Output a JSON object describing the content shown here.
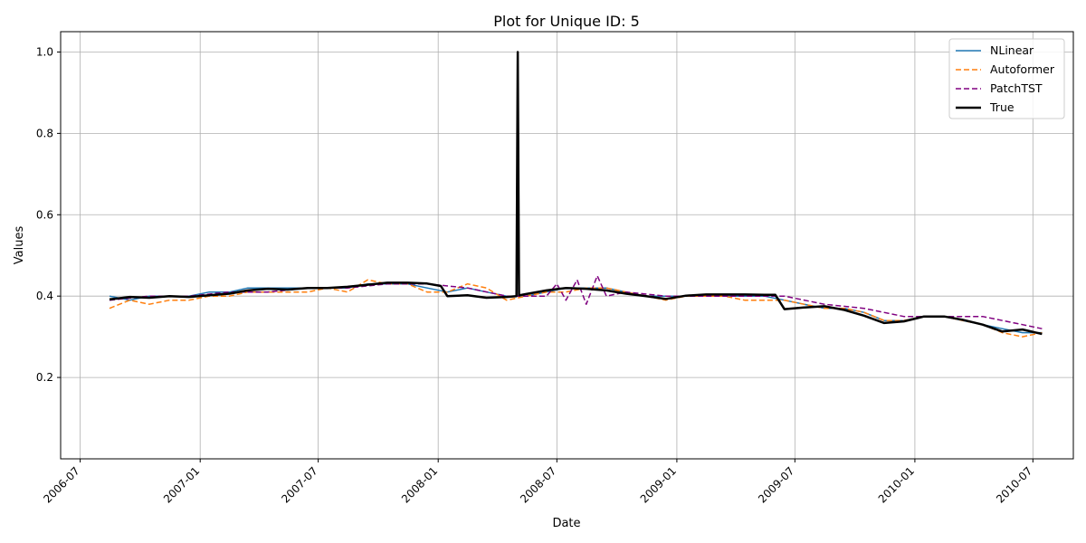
{
  "chart_data": {
    "type": "line",
    "title": "Plot for Unique ID: 5",
    "xlabel": "Date",
    "ylabel": "Values",
    "xlim": [
      "2006-06-01",
      "2010-09-01"
    ],
    "ylim": [
      0.0,
      1.05
    ],
    "x_ticks": [
      "2006-07",
      "2007-01",
      "2007-07",
      "2008-01",
      "2008-07",
      "2009-01",
      "2009-07",
      "2010-01",
      "2010-07"
    ],
    "y_ticks": [
      "0.2",
      "0.4",
      "0.6",
      "0.8",
      "1.0"
    ],
    "grid": true,
    "legend_position": "top-right",
    "series": [
      {
        "name": "NLinear",
        "color": "#1f77b4",
        "style": "solid",
        "x": [
          "2006-08-15",
          "2006-09-15",
          "2006-10-15",
          "2006-11-15",
          "2006-12-15",
          "2007-01-15",
          "2007-02-15",
          "2007-03-15",
          "2007-04-15",
          "2007-05-15",
          "2007-06-15",
          "2007-07-15",
          "2007-08-15",
          "2007-09-15",
          "2007-10-15",
          "2007-11-15",
          "2007-12-15",
          "2008-01-15",
          "2008-02-15",
          "2008-03-15",
          "2008-04-15",
          "2008-05-15",
          "2008-06-15",
          "2008-07-15",
          "2008-08-15",
          "2008-09-15",
          "2008-10-15",
          "2008-11-15",
          "2008-12-15",
          "2009-01-15",
          "2009-02-15",
          "2009-03-15",
          "2009-04-15",
          "2009-05-15",
          "2009-06-15",
          "2009-07-15",
          "2009-08-15",
          "2009-09-15",
          "2009-10-15",
          "2009-11-15",
          "2009-12-15",
          "2010-01-15",
          "2010-02-15",
          "2010-03-15",
          "2010-04-15",
          "2010-05-15",
          "2010-06-15",
          "2010-07-15"
        ],
        "values": [
          0.4,
          0.39,
          0.4,
          0.4,
          0.4,
          0.41,
          0.41,
          0.42,
          0.42,
          0.42,
          0.42,
          0.42,
          0.42,
          0.43,
          0.43,
          0.43,
          0.42,
          0.41,
          0.42,
          0.41,
          0.4,
          0.4,
          0.41,
          0.42,
          0.42,
          0.42,
          0.41,
          0.4,
          0.4,
          0.4,
          0.4,
          0.4,
          0.4,
          0.4,
          0.39,
          0.38,
          0.37,
          0.37,
          0.36,
          0.34,
          0.34,
          0.35,
          0.35,
          0.34,
          0.33,
          0.32,
          0.31,
          0.31
        ]
      },
      {
        "name": "Autoformer",
        "color": "#ff7f0e",
        "style": "dashed",
        "x": [
          "2006-08-15",
          "2006-09-15",
          "2006-10-15",
          "2006-11-15",
          "2006-12-15",
          "2007-01-15",
          "2007-02-15",
          "2007-03-15",
          "2007-04-15",
          "2007-05-15",
          "2007-06-15",
          "2007-07-15",
          "2007-08-15",
          "2007-09-15",
          "2007-10-15",
          "2007-11-15",
          "2007-12-15",
          "2008-01-15",
          "2008-02-15",
          "2008-03-15",
          "2008-04-15",
          "2008-05-15",
          "2008-06-15",
          "2008-07-15",
          "2008-08-15",
          "2008-09-15",
          "2008-10-15",
          "2008-11-15",
          "2008-12-15",
          "2009-01-15",
          "2009-02-15",
          "2009-03-15",
          "2009-04-15",
          "2009-05-15",
          "2009-06-15",
          "2009-07-15",
          "2009-08-15",
          "2009-09-15",
          "2009-10-15",
          "2009-11-15",
          "2009-12-15",
          "2010-01-15",
          "2010-02-15",
          "2010-03-15",
          "2010-04-15",
          "2010-05-15",
          "2010-06-15",
          "2010-07-15"
        ],
        "values": [
          0.37,
          0.39,
          0.38,
          0.39,
          0.39,
          0.4,
          0.4,
          0.41,
          0.41,
          0.41,
          0.41,
          0.42,
          0.41,
          0.44,
          0.43,
          0.43,
          0.41,
          0.41,
          0.43,
          0.42,
          0.39,
          0.4,
          0.41,
          0.41,
          0.42,
          0.42,
          0.41,
          0.4,
          0.39,
          0.4,
          0.4,
          0.4,
          0.39,
          0.39,
          0.39,
          0.38,
          0.37,
          0.37,
          0.36,
          0.34,
          0.34,
          0.35,
          0.35,
          0.34,
          0.33,
          0.31,
          0.3,
          0.31
        ]
      },
      {
        "name": "PatchTST",
        "color": "#800080",
        "style": "dashed",
        "x": [
          "2006-08-15",
          "2006-10-15",
          "2006-12-15",
          "2007-02-15",
          "2007-04-15",
          "2007-06-15",
          "2007-08-15",
          "2007-10-15",
          "2007-12-15",
          "2008-02-15",
          "2008-04-15",
          "2008-06-15",
          "2008-07-01",
          "2008-07-15",
          "2008-08-01",
          "2008-08-15",
          "2008-09-01",
          "2008-09-15",
          "2008-10-15",
          "2008-12-15",
          "2009-02-15",
          "2009-04-15",
          "2009-06-15",
          "2009-08-15",
          "2009-10-15",
          "2009-12-15",
          "2010-02-15",
          "2010-04-15",
          "2010-06-15",
          "2010-07-15"
        ],
        "values": [
          0.39,
          0.4,
          0.4,
          0.41,
          0.41,
          0.42,
          0.42,
          0.43,
          0.43,
          0.42,
          0.4,
          0.4,
          0.43,
          0.39,
          0.44,
          0.38,
          0.45,
          0.4,
          0.41,
          0.4,
          0.4,
          0.4,
          0.4,
          0.38,
          0.37,
          0.35,
          0.35,
          0.35,
          0.33,
          0.32
        ]
      },
      {
        "name": "True",
        "color": "#000000",
        "style": "solid",
        "x": [
          "2006-08-15",
          "2006-09-15",
          "2006-10-15",
          "2006-11-15",
          "2006-12-15",
          "2007-01-15",
          "2007-02-15",
          "2007-03-15",
          "2007-04-15",
          "2007-05-15",
          "2007-06-15",
          "2007-07-15",
          "2007-08-15",
          "2007-09-15",
          "2007-10-15",
          "2007-11-15",
          "2007-12-15",
          "2008-01-05",
          "2008-01-15",
          "2008-02-15",
          "2008-03-15",
          "2008-04-15",
          "2008-04-30",
          "2008-05-02",
          "2008-05-04",
          "2008-05-15",
          "2008-06-15",
          "2008-07-15",
          "2008-08-15",
          "2008-09-15",
          "2008-10-15",
          "2008-11-15",
          "2008-12-15",
          "2009-01-15",
          "2009-02-15",
          "2009-03-15",
          "2009-04-15",
          "2009-05-15",
          "2009-06-01",
          "2009-06-15",
          "2009-07-15",
          "2009-08-15",
          "2009-09-15",
          "2009-10-15",
          "2009-11-15",
          "2009-12-15",
          "2010-01-15",
          "2010-02-15",
          "2010-03-15",
          "2010-04-15",
          "2010-05-15",
          "2010-06-15",
          "2010-07-15"
        ],
        "values": [
          0.392,
          0.398,
          0.396,
          0.4,
          0.398,
          0.402,
          0.406,
          0.414,
          0.418,
          0.416,
          0.42,
          0.42,
          0.423,
          0.428,
          0.433,
          0.433,
          0.431,
          0.425,
          0.4,
          0.402,
          0.396,
          0.398,
          0.4,
          1.0,
          0.402,
          0.405,
          0.414,
          0.42,
          0.418,
          0.414,
          0.406,
          0.4,
          0.393,
          0.401,
          0.404,
          0.404,
          0.404,
          0.403,
          0.403,
          0.368,
          0.372,
          0.375,
          0.366,
          0.352,
          0.334,
          0.338,
          0.35,
          0.35,
          0.342,
          0.33,
          0.313,
          0.318,
          0.307
        ]
      }
    ]
  }
}
